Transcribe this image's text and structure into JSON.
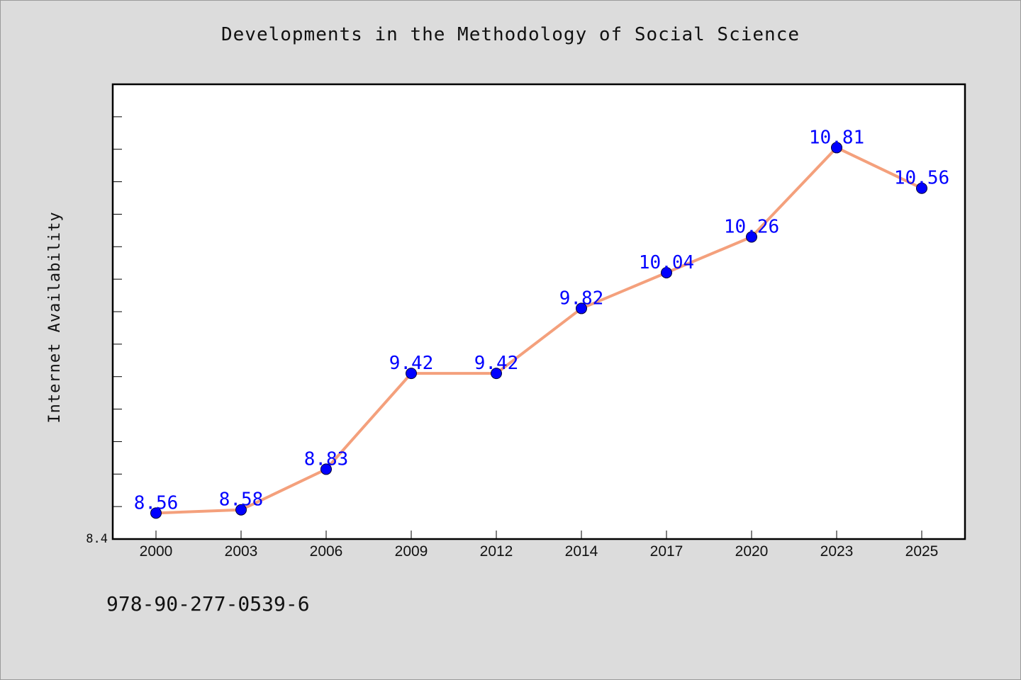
{
  "chart_data": {
    "type": "line",
    "title": "Developments in the Methodology of Social Science",
    "xlabel": "",
    "ylabel": "Internet Availability",
    "categories": [
      "2000",
      "2003",
      "2006",
      "2009",
      "2012",
      "2014",
      "2017",
      "2020",
      "2023",
      "2025"
    ],
    "series": [
      {
        "values": [
          8.56,
          8.58,
          8.83,
          9.42,
          9.42,
          9.82,
          10.04,
          10.26,
          10.81,
          10.56
        ],
        "data_labels": [
          "8.56",
          "8.58",
          "8.83",
          "9.42",
          "9.42",
          "9.82",
          "10.04",
          "10.26",
          "10.81",
          "10.56"
        ]
      }
    ],
    "ylim": [
      8.4,
      11.2
    ],
    "y_tick_labels": [
      "8.4"
    ],
    "grid": false,
    "legend": "none",
    "colors": {
      "line": "#f4a07c",
      "marker": "#0000ff",
      "label": "#0000ff"
    }
  },
  "footnote": "978-90-277-0539-6"
}
